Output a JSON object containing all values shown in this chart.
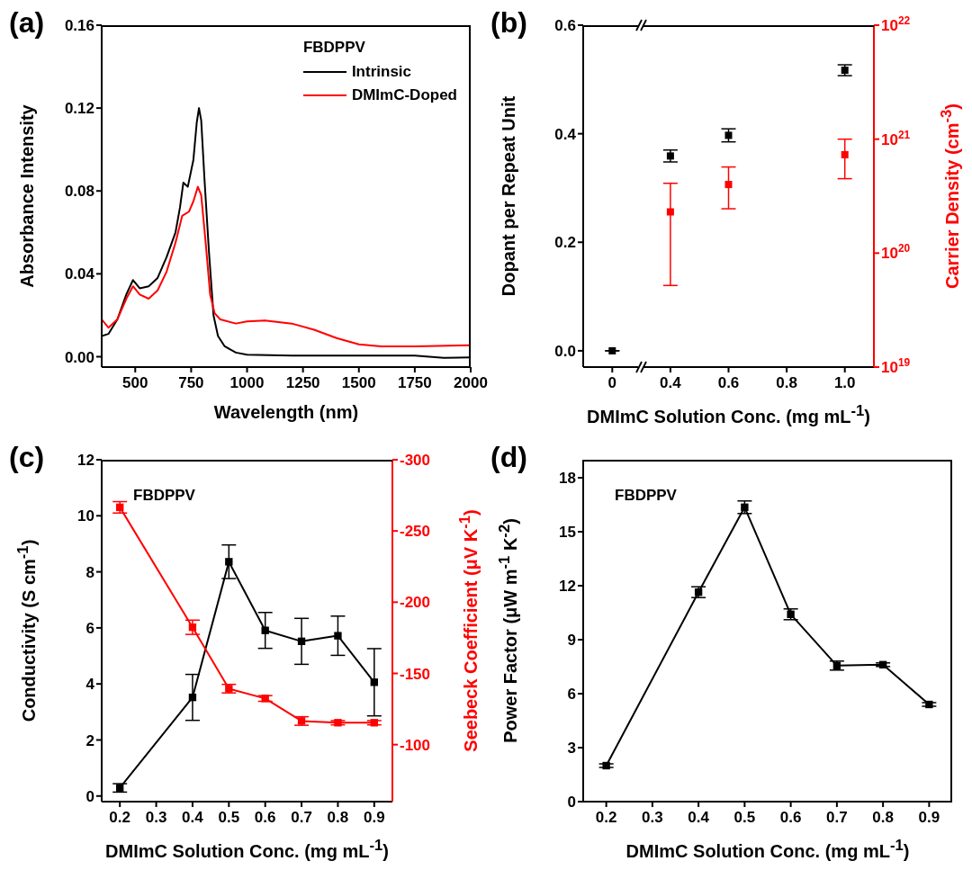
{
  "chart_data": [
    {
      "type": "line",
      "title": "(a)",
      "xlabel": "Wavelength (nm)",
      "ylabel": "Absorbance Intensity",
      "legend_title": "FBDPPV",
      "legend": "top right",
      "xlim": [
        350,
        2000
      ],
      "xticks": [
        500,
        750,
        1000,
        1250,
        1500,
        1750,
        2000
      ],
      "ylim": [
        -0.005,
        0.16
      ],
      "yticks": [
        {
          "value": 0,
          "label": "0.00"
        },
        {
          "value": 0.04,
          "label": "0.04"
        },
        {
          "value": 0.08,
          "label": "0.08"
        },
        {
          "value": 0.12,
          "label": "0.12"
        },
        {
          "value": 0.16,
          "label": "0.16"
        }
      ],
      "series": [
        {
          "name": "Intrinsic",
          "color": "#000000",
          "x": [
            350,
            380,
            420,
            460,
            490,
            520,
            560,
            600,
            640,
            680,
            700,
            715,
            735,
            760,
            775,
            785,
            795,
            810,
            830,
            850,
            870,
            900,
            950,
            1000,
            1200,
            1500,
            1750,
            1880,
            2000
          ],
          "values": [
            0.01,
            0.011,
            0.018,
            0.03,
            0.037,
            0.033,
            0.034,
            0.038,
            0.048,
            0.06,
            0.072,
            0.084,
            0.082,
            0.095,
            0.113,
            0.12,
            0.114,
            0.085,
            0.05,
            0.02,
            0.01,
            0.005,
            0.002,
            0.001,
            0.0005,
            0.0005,
            0.0005,
            -0.0005,
            -0.0003
          ]
        },
        {
          "name": "DMImC-Doped",
          "color": "#ff0000",
          "x": [
            350,
            380,
            420,
            460,
            490,
            520,
            560,
            600,
            640,
            680,
            710,
            740,
            760,
            780,
            795,
            815,
            835,
            855,
            880,
            950,
            1000,
            1080,
            1200,
            1300,
            1400,
            1500,
            1600,
            1750,
            2000
          ],
          "values": [
            0.018,
            0.014,
            0.018,
            0.028,
            0.034,
            0.03,
            0.028,
            0.032,
            0.041,
            0.055,
            0.068,
            0.07,
            0.075,
            0.082,
            0.078,
            0.055,
            0.03,
            0.021,
            0.018,
            0.016,
            0.017,
            0.0175,
            0.016,
            0.013,
            0.009,
            0.006,
            0.005,
            0.005,
            0.0055
          ]
        }
      ]
    },
    {
      "type": "scatter",
      "title": "(b)",
      "xlabel": "DMImC Solution Conc. (mg mL$^{-1}$)",
      "ylabel": "Dopant per Repeat Unit",
      "y2label": "Carrier Density (cm$^{-3}$)",
      "marker": "square",
      "log": "y2",
      "categories": [
        "0",
        "0.4",
        "0.6",
        "0.8",
        "1.0"
      ],
      "ylim": [
        -0.03,
        0.6
      ],
      "yticks": [
        {
          "value": 0,
          "label": "0.0"
        },
        {
          "value": 0.2,
          "label": "0.2"
        },
        {
          "value": 0.4,
          "label": "0.4"
        },
        {
          "value": 0.6,
          "label": "0.6"
        }
      ],
      "y2lim": [
        1e+19,
        1e+22
      ],
      "y2ticks": [
        {
          "value": 1e+19,
          "label": "10$^{19}$"
        },
        {
          "value": 1e+20,
          "label": "10$^{20}$"
        },
        {
          "value": 1e+21,
          "label": "10$^{21}$"
        },
        {
          "value": 1e+22,
          "label": "10$^{22}$"
        }
      ],
      "series": [
        {
          "color": "#000000",
          "values": [
            0.0,
            0.359,
            0.397,
            null,
            0.517
          ],
          "errors": [
            null,
            0.011,
            0.012,
            null,
            0.01
          ]
        },
        {
          "color": "#ff0000",
          "axis": "y2",
          "values": [
            null,
            2.3e+20,
            4e+20,
            null,
            7.3e+20
          ],
          "errors": [
            null,
            [
              5.2e+19,
              4.1e+20
            ],
            [
              2.45e+20,
              5.7e+20
            ],
            null,
            [
              4.5e+20,
              1e+21
            ]
          ]
        }
      ]
    },
    {
      "type": "line",
      "title": "(c)",
      "xlabel": "DMImC Solution Conc. (mg mL$^{-1}$)",
      "ylabel": "Conductivity (S cm$^{-1}$)",
      "y2label": "Seebeck Coefficient (μV K$^{-1}$)",
      "marker": "square",
      "annotations": [
        "FBDPPV"
      ],
      "x": [
        0.2,
        0.4,
        0.5,
        0.6,
        0.7,
        0.8,
        0.9
      ],
      "xlim": [
        0.15,
        0.95
      ],
      "xticks": [
        0.2,
        0.3,
        0.4,
        0.5,
        0.6,
        0.7,
        0.8,
        0.9
      ],
      "ylim": [
        -0.2,
        12
      ],
      "yticks": [
        0,
        2,
        4,
        6,
        8,
        10,
        12
      ],
      "y2lim": [
        -60,
        -300
      ],
      "y2ticks": [
        -300,
        -250,
        -200,
        -150,
        -100
      ],
      "series": [
        {
          "color": "#000000",
          "values": [
            0.29,
            3.52,
            8.36,
            5.91,
            5.52,
            5.72,
            4.06
          ],
          "errors": [
            0.15,
            0.82,
            0.6,
            0.64,
            0.82,
            0.7,
            1.2
          ]
        },
        {
          "color": "#ff0000",
          "axis": "y2",
          "values": [
            -266.6,
            -182.4,
            -139.3,
            -132.4,
            -116.6,
            -115.4,
            -115.4
          ],
          "errors": [
            4,
            5,
            3,
            2,
            3,
            1.5,
            1.5
          ]
        }
      ]
    },
    {
      "type": "line",
      "title": "(d)",
      "xlabel": "DMImC Solution Conc. (mg mL$^{-1}$)",
      "ylabel": "Power Factor (μW m$^{-1}$ K$^{-2}$)",
      "marker": "square",
      "annotations": [
        "FBDPPV"
      ],
      "x": [
        0.2,
        0.4,
        0.5,
        0.6,
        0.7,
        0.8,
        0.9
      ],
      "xlim": [
        0.15,
        0.95
      ],
      "xticks": [
        0.2,
        0.3,
        0.4,
        0.5,
        0.6,
        0.7,
        0.8,
        0.9
      ],
      "ylim": [
        0,
        19
      ],
      "yticks": [
        0,
        3,
        6,
        9,
        12,
        15,
        18
      ],
      "series": [
        {
          "color": "#000000",
          "values": [
            2.0,
            11.64,
            16.36,
            10.41,
            7.56,
            7.61,
            5.4
          ],
          "errors": [
            0.1,
            0.3,
            0.35,
            0.3,
            0.25,
            0.1,
            0.1
          ]
        }
      ]
    }
  ]
}
